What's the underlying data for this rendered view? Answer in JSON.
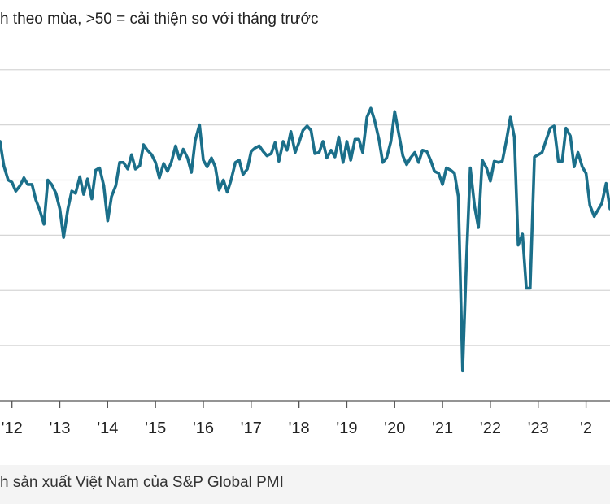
{
  "subtitle": "h theo mùa, >50 = cải thiện so với tháng trước",
  "source": "h sản xuất Việt Nam của S&P Global PMI",
  "colors": {
    "line": "#1b6f8a",
    "grid": "#d6d6d6",
    "axis": "#555555"
  },
  "chart_data": {
    "type": "line",
    "title": "",
    "xlabel": "",
    "ylabel": "",
    "x_tick_labels": [
      "'12",
      "'13",
      "'14",
      "'15",
      "'16",
      "'17",
      "'18",
      "'19",
      "'20",
      "'21",
      "'22",
      "'23",
      "'2"
    ],
    "y_gridlines": [
      35,
      40,
      45,
      50,
      55,
      60
    ],
    "ylim": [
      30,
      63
    ],
    "x_start": 2011.75,
    "x_end": 2024.5,
    "series": [
      {
        "name": "PMI",
        "points": [
          [
            2011.75,
            53.5
          ],
          [
            2011.83,
            51.3
          ],
          [
            2011.92,
            50.0
          ],
          [
            2012.0,
            49.8
          ],
          [
            2012.08,
            49.0
          ],
          [
            2012.17,
            49.5
          ],
          [
            2012.25,
            50.2
          ],
          [
            2012.33,
            49.6
          ],
          [
            2012.42,
            49.6
          ],
          [
            2012.5,
            48.2
          ],
          [
            2012.58,
            47.3
          ],
          [
            2012.67,
            46.0
          ],
          [
            2012.75,
            50.0
          ],
          [
            2012.83,
            49.6
          ],
          [
            2012.92,
            48.8
          ],
          [
            2013.0,
            47.4
          ],
          [
            2013.08,
            44.8
          ],
          [
            2013.17,
            47.4
          ],
          [
            2013.25,
            49.0
          ],
          [
            2013.33,
            48.8
          ],
          [
            2013.42,
            50.3
          ],
          [
            2013.5,
            48.7
          ],
          [
            2013.58,
            50.1
          ],
          [
            2013.67,
            48.3
          ],
          [
            2013.75,
            50.9
          ],
          [
            2013.83,
            51.1
          ],
          [
            2013.92,
            49.5
          ],
          [
            2014.0,
            46.3
          ],
          [
            2014.08,
            48.5
          ],
          [
            2014.17,
            49.5
          ],
          [
            2014.25,
            51.6
          ],
          [
            2014.33,
            51.6
          ],
          [
            2014.42,
            51.0
          ],
          [
            2014.5,
            52.3
          ],
          [
            2014.58,
            51.0
          ],
          [
            2014.67,
            51.3
          ],
          [
            2014.75,
            53.2
          ],
          [
            2014.83,
            52.7
          ],
          [
            2014.92,
            52.3
          ],
          [
            2015.0,
            51.6
          ],
          [
            2015.08,
            50.2
          ],
          [
            2015.17,
            51.5
          ],
          [
            2015.25,
            50.8
          ],
          [
            2015.33,
            51.6
          ],
          [
            2015.42,
            53.1
          ],
          [
            2015.5,
            51.9
          ],
          [
            2015.58,
            52.8
          ],
          [
            2015.67,
            52.0
          ],
          [
            2015.75,
            50.7
          ],
          [
            2015.83,
            53.6
          ],
          [
            2015.92,
            55.0
          ],
          [
            2016.0,
            51.8
          ],
          [
            2016.08,
            51.2
          ],
          [
            2016.17,
            52.0
          ],
          [
            2016.25,
            51.2
          ],
          [
            2016.33,
            49.1
          ],
          [
            2016.42,
            50.0
          ],
          [
            2016.5,
            48.9
          ],
          [
            2016.58,
            50.0
          ],
          [
            2016.67,
            51.6
          ],
          [
            2016.75,
            51.8
          ],
          [
            2016.83,
            50.5
          ],
          [
            2016.92,
            51.0
          ],
          [
            2017.0,
            52.6
          ],
          [
            2017.08,
            52.9
          ],
          [
            2017.17,
            53.1
          ],
          [
            2017.25,
            52.6
          ],
          [
            2017.33,
            52.2
          ],
          [
            2017.42,
            52.4
          ],
          [
            2017.5,
            53.4
          ],
          [
            2017.58,
            51.7
          ],
          [
            2017.67,
            53.5
          ],
          [
            2017.75,
            52.7
          ],
          [
            2017.83,
            54.4
          ],
          [
            2017.92,
            52.5
          ],
          [
            2018.0,
            53.4
          ],
          [
            2018.08,
            54.5
          ],
          [
            2018.17,
            54.9
          ],
          [
            2018.25,
            54.5
          ],
          [
            2018.33,
            52.4
          ],
          [
            2018.42,
            52.5
          ],
          [
            2018.5,
            53.5
          ],
          [
            2018.58,
            52.0
          ],
          [
            2018.67,
            52.7
          ],
          [
            2018.75,
            52.1
          ],
          [
            2018.83,
            53.9
          ],
          [
            2018.92,
            51.6
          ],
          [
            2019.0,
            53.5
          ],
          [
            2019.08,
            51.8
          ],
          [
            2019.17,
            53.7
          ],
          [
            2019.25,
            53.7
          ],
          [
            2019.33,
            52.5
          ],
          [
            2019.42,
            55.7
          ],
          [
            2019.5,
            56.5
          ],
          [
            2019.58,
            55.4
          ],
          [
            2019.67,
            53.7
          ],
          [
            2019.75,
            51.6
          ],
          [
            2019.83,
            52.0
          ],
          [
            2019.92,
            53.5
          ],
          [
            2020.0,
            56.2
          ],
          [
            2020.08,
            54.3
          ],
          [
            2020.17,
            52.2
          ],
          [
            2020.25,
            51.4
          ],
          [
            2020.33,
            52.0
          ],
          [
            2020.42,
            52.5
          ],
          [
            2020.5,
            51.6
          ],
          [
            2020.58,
            52.7
          ],
          [
            2020.67,
            52.6
          ],
          [
            2020.75,
            51.8
          ],
          [
            2020.83,
            50.8
          ],
          [
            2020.92,
            50.6
          ],
          [
            2021.0,
            49.6
          ],
          [
            2021.08,
            51.1
          ],
          [
            2021.17,
            50.9
          ],
          [
            2021.25,
            50.6
          ],
          [
            2021.33,
            48.5
          ],
          [
            2021.42,
            32.7
          ],
          [
            2021.5,
            42.7
          ],
          [
            2021.58,
            51.1
          ],
          [
            2021.67,
            47.6
          ],
          [
            2021.75,
            45.7
          ],
          [
            2021.83,
            51.8
          ],
          [
            2021.92,
            51.1
          ],
          [
            2022.0,
            49.9
          ],
          [
            2022.08,
            51.7
          ],
          [
            2022.17,
            51.6
          ],
          [
            2022.25,
            51.7
          ],
          [
            2022.33,
            53.5
          ],
          [
            2022.42,
            55.7
          ],
          [
            2022.5,
            53.9
          ],
          [
            2022.58,
            44.1
          ],
          [
            2022.67,
            45.1
          ],
          [
            2022.75,
            40.2
          ],
          [
            2022.83,
            40.2
          ],
          [
            2022.92,
            52.1
          ],
          [
            2023.0,
            52.3
          ],
          [
            2023.08,
            52.5
          ],
          [
            2023.17,
            53.7
          ],
          [
            2023.25,
            54.7
          ],
          [
            2023.33,
            54.9
          ],
          [
            2023.42,
            51.7
          ],
          [
            2023.5,
            51.7
          ],
          [
            2023.58,
            54.7
          ],
          [
            2023.67,
            54.0
          ],
          [
            2023.75,
            51.2
          ],
          [
            2023.83,
            52.5
          ],
          [
            2023.92,
            51.2
          ],
          [
            2024.0,
            50.6
          ],
          [
            2024.08,
            47.7
          ],
          [
            2024.17,
            46.7
          ],
          [
            2024.25,
            47.3
          ],
          [
            2024.33,
            47.9
          ],
          [
            2024.42,
            49.7
          ],
          [
            2024.5,
            47.4
          ]
        ]
      }
    ]
  }
}
